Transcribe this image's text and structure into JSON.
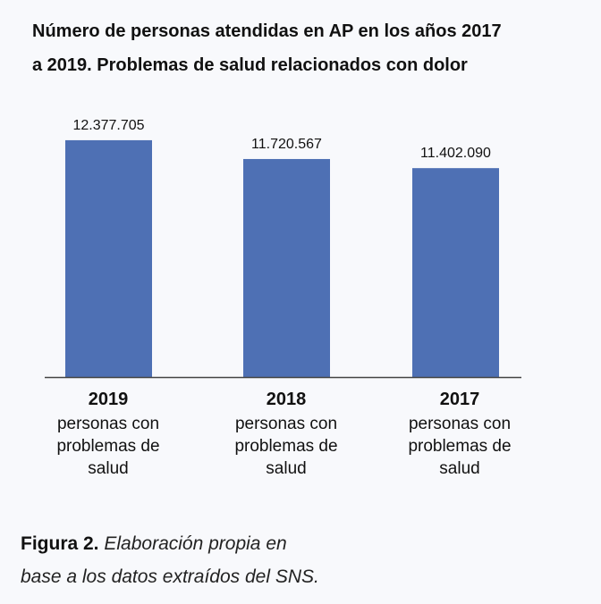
{
  "chart_data": {
    "type": "bar",
    "title": "Número de personas atendidas en AP en los años 2017 a 2019. Problemas de salud relacionados con dolor",
    "title_lines": [
      "Número de personas atendidas en AP en los años 2017",
      "a 2019. Problemas de salud relacionados con dolor"
    ],
    "categories": [
      "2019",
      "2018",
      "2017"
    ],
    "category_description": "personas con problemas de salud",
    "category_description_lines": [
      "personas con",
      "problemas de",
      "salud"
    ],
    "values": [
      12377705,
      11720567,
      11402090
    ],
    "data_labels": [
      "12.377.705",
      "11.720.567",
      "11.402.090"
    ],
    "xlabel": "",
    "ylabel": "",
    "ylim": [
      4100000,
      13000000
    ],
    "grid": false,
    "bar_color": "#4e70b4"
  },
  "caption": {
    "label": "Figura 2.",
    "text_line1": "Elaboración propia en",
    "text_line2": "base a los datos extraídos del SNS."
  }
}
